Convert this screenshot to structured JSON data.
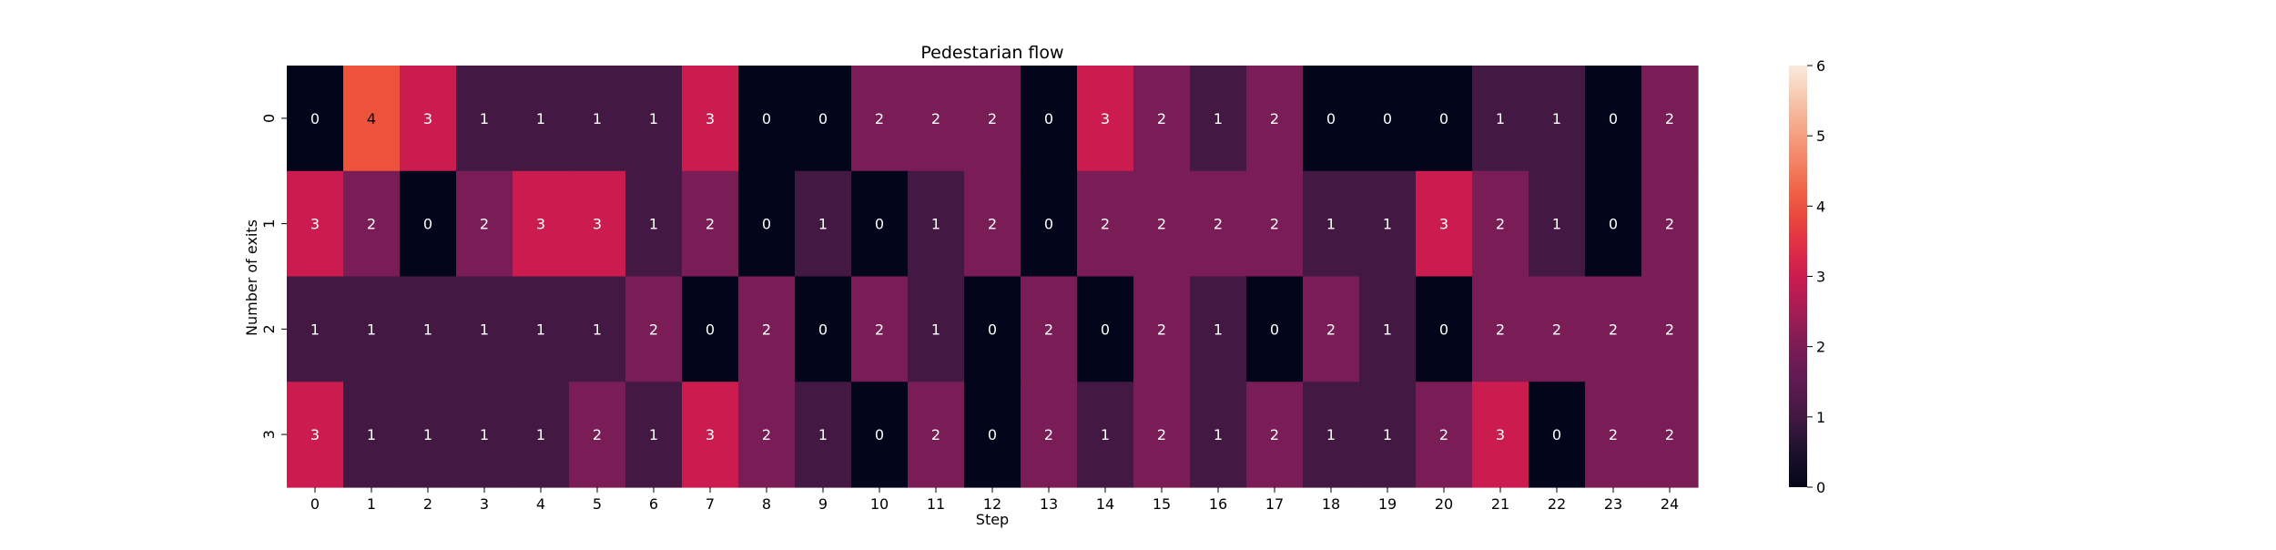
{
  "chart_data": {
    "type": "heatmap",
    "title": "Pedestarian flow",
    "xlabel": "Step",
    "ylabel": "Number of exits",
    "x_categories": [
      "0",
      "1",
      "2",
      "3",
      "4",
      "5",
      "6",
      "7",
      "8",
      "9",
      "10",
      "11",
      "12",
      "13",
      "14",
      "15",
      "16",
      "17",
      "18",
      "19",
      "20",
      "21",
      "22",
      "23",
      "24"
    ],
    "y_categories": [
      "0",
      "1",
      "2",
      "3"
    ],
    "values": [
      [
        0,
        4,
        3,
        1,
        1,
        1,
        1,
        3,
        0,
        0,
        2,
        2,
        2,
        0,
        3,
        2,
        1,
        2,
        0,
        0,
        0,
        1,
        1,
        0,
        2
      ],
      [
        3,
        2,
        0,
        2,
        3,
        3,
        1,
        2,
        0,
        1,
        0,
        1,
        2,
        0,
        2,
        2,
        2,
        2,
        1,
        1,
        3,
        2,
        1,
        0,
        2
      ],
      [
        1,
        1,
        1,
        1,
        1,
        1,
        2,
        0,
        2,
        0,
        2,
        1,
        0,
        2,
        0,
        2,
        1,
        0,
        2,
        1,
        0,
        2,
        2,
        2,
        2
      ],
      [
        3,
        1,
        1,
        1,
        1,
        2,
        1,
        3,
        2,
        1,
        0,
        2,
        0,
        2,
        1,
        2,
        1,
        2,
        1,
        1,
        2,
        3,
        0,
        2,
        2
      ]
    ],
    "annotate": true,
    "colorbar": {
      "range": [
        0,
        6
      ],
      "ticks": [
        "0",
        "1",
        "2",
        "3",
        "4",
        "5",
        "6"
      ]
    },
    "colormap": "rocket"
  }
}
